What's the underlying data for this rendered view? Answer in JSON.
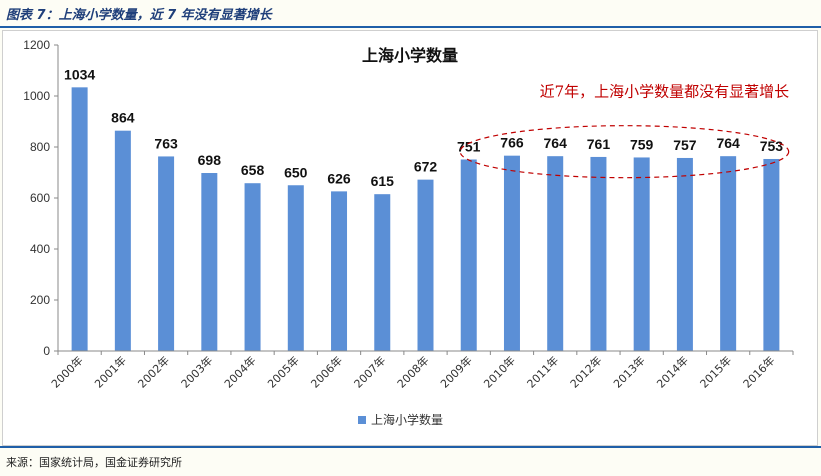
{
  "header": {
    "figure_title": "图表 7：上海小学数量，近 7 年没有显著增长"
  },
  "footer": {
    "source": "来源：国家统计局，国金证券研究所"
  },
  "colors": {
    "bar": "#5b8fd6",
    "annotation": "#c00000",
    "accent": "#1f5fa8"
  },
  "chart_data": {
    "type": "bar",
    "title": "上海小学数量",
    "xlabel": "",
    "ylabel": "",
    "ylim": [
      0,
      1200
    ],
    "yticks": [
      0,
      200,
      400,
      600,
      800,
      1000,
      1200
    ],
    "grid": false,
    "legend_position": "bottom",
    "categories": [
      "2000年",
      "2001年",
      "2002年",
      "2003年",
      "2004年",
      "2005年",
      "2006年",
      "2007年",
      "2008年",
      "2009年",
      "2010年",
      "2011年",
      "2012年",
      "2013年",
      "2014年",
      "2015年",
      "2016年"
    ],
    "series": [
      {
        "name": "上海小学数量",
        "values": [
          1034,
          864,
          763,
          698,
          658,
          650,
          626,
          615,
          672,
          751,
          766,
          764,
          761,
          759,
          757,
          764,
          753
        ]
      }
    ],
    "annotations": [
      {
        "text": "近7年，上海小学数量都没有显著增长",
        "highlight_categories": [
          "2010年",
          "2016年"
        ]
      }
    ]
  }
}
